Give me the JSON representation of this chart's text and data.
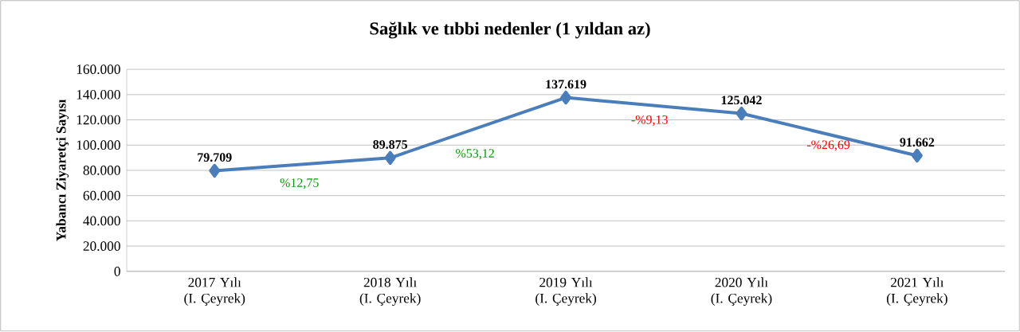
{
  "chart_data": {
    "type": "line",
    "title": "Sağlık ve tıbbi nedenler (1 yıldan az)",
    "ylabel": "Yabancı Ziyaretçi Sayısı",
    "categories": [
      "2017 Yılı (I. Çeyrek)",
      "2018 Yılı (I. Çeyrek)",
      "2019 Yılı (I. Çeyrek)",
      "2020 Yılı (I. Çeyrek)",
      "2021 Yılı (I. Çeyrek)"
    ],
    "series": [
      {
        "color": "#4a7ebb",
        "values": [
          79709,
          89875,
          137619,
          125042,
          91662
        ],
        "value_labels": [
          "79.709",
          "89.875",
          "137.619",
          "125.042",
          "91.662"
        ]
      }
    ],
    "ylim": [
      0,
      160000
    ],
    "yticks": [
      0,
      {
        "value": 20000,
        "label": "20.000"
      },
      {
        "value": 40000,
        "label": "40.000"
      },
      {
        "value": 60000,
        "label": "60.000"
      },
      {
        "value": 80000,
        "label": "80.000"
      },
      {
        "value": 100000,
        "label": "100.000"
      },
      {
        "value": 120000,
        "label": "120.000"
      },
      {
        "value": 140000,
        "label": "140.000"
      },
      {
        "value": 160000,
        "label": "160.000"
      }
    ],
    "annotations": [
      "%12,75",
      "%53,12",
      "-%9,13",
      "-%26,69"
    ],
    "grid": "y",
    "marker": "diamond",
    "line_style": "solid"
  }
}
